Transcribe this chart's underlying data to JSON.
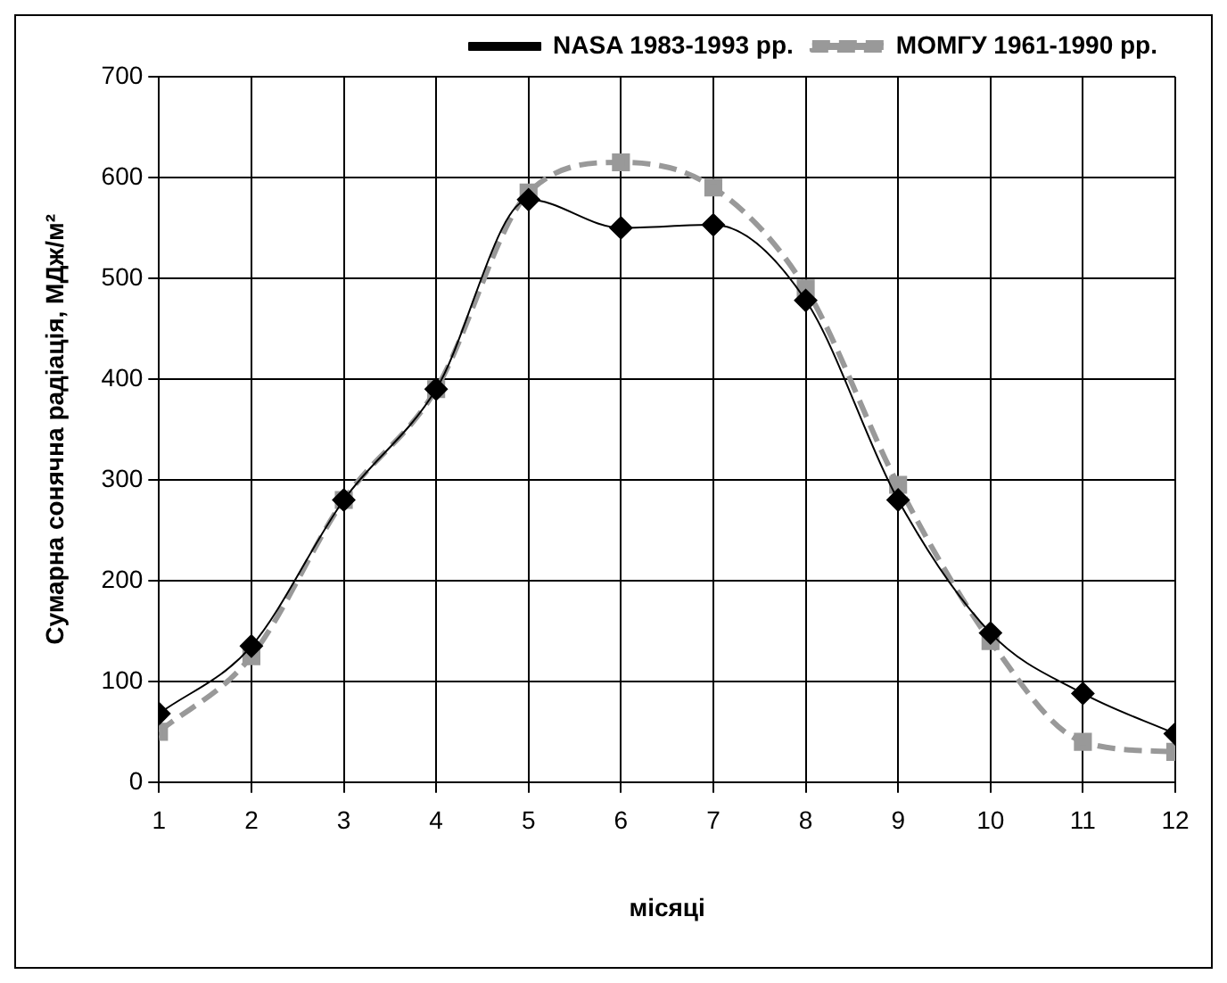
{
  "chart_data": {
    "type": "line",
    "xlabel": "місяці",
    "ylabel": "Сумарна сонячна радіація, МДж/м²",
    "x": [
      1,
      2,
      3,
      4,
      5,
      6,
      7,
      8,
      9,
      10,
      11,
      12
    ],
    "series": [
      {
        "name": "МОМГУ 1961-1990 рр.",
        "color": "#999999",
        "marker": "square",
        "line_style": "dashed",
        "values": [
          50,
          125,
          280,
          390,
          585,
          615,
          590,
          490,
          295,
          140,
          40,
          30
        ]
      },
      {
        "name": "NASA 1983-1993 рр.",
        "color": "#000000",
        "marker": "diamond",
        "line_style": "solid",
        "values": [
          68,
          135,
          280,
          390,
          578,
          550,
          553,
          478,
          280,
          148,
          88,
          48
        ]
      }
    ],
    "xlim": [
      1,
      12
    ],
    "xticks": [
      1,
      2,
      3,
      4,
      5,
      6,
      7,
      8,
      9,
      10,
      11,
      12
    ],
    "ylim": [
      0,
      700
    ],
    "yticks": [
      0,
      100,
      200,
      300,
      400,
      500,
      600,
      700
    ],
    "grid": true,
    "legend": "top right"
  }
}
